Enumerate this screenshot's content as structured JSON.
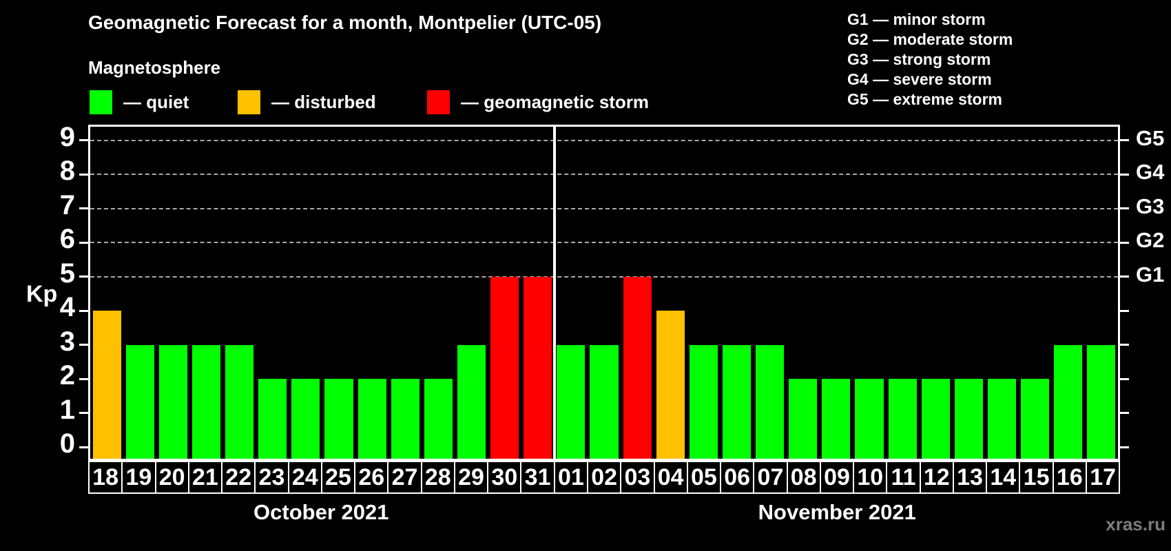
{
  "header": {
    "title": "Geomagnetic Forecast for a month, Montpelier (UTC-05)",
    "subtitle": "Magnetosphere"
  },
  "legend": [
    {
      "label": "— quiet",
      "status": "quiet"
    },
    {
      "label": "— disturbed",
      "status": "disturbed"
    },
    {
      "label": "— geomagnetic storm",
      "status": "storm"
    }
  ],
  "g_legend": [
    "G1 — minor storm",
    "G2 — moderate storm",
    "G3 — strong storm",
    "G4 — severe storm",
    "G5 — extreme storm"
  ],
  "colors": {
    "quiet": "#00ff00",
    "disturbed": "#ffc000",
    "storm": "#ff0000",
    "background": "#000000",
    "text": "#ffffff",
    "gridline": "#aaaaaa",
    "watermark": "#7d7d7d"
  },
  "watermark": "xras.ru",
  "chart_data": {
    "type": "bar",
    "title": "Geomagnetic Forecast for a month, Montpelier (UTC-05)",
    "ylabel": "Kp",
    "ylim": [
      0,
      9
    ],
    "y_ticks": [
      0,
      1,
      2,
      3,
      4,
      5,
      6,
      7,
      8,
      9
    ],
    "gridlines_at": [
      5,
      6,
      7,
      8,
      9
    ],
    "grid": "dashed",
    "right_axis": [
      {
        "value": 5,
        "label": "G1"
      },
      {
        "value": 6,
        "label": "G2"
      },
      {
        "value": 7,
        "label": "G3"
      },
      {
        "value": 8,
        "label": "G4"
      },
      {
        "value": 9,
        "label": "G5"
      }
    ],
    "months": [
      {
        "label": "October 2021",
        "start_index": 0,
        "count": 14
      },
      {
        "label": "November 2021",
        "start_index": 14,
        "count": 17
      }
    ],
    "days": [
      {
        "day": "18",
        "kp": 4,
        "status": "disturbed"
      },
      {
        "day": "19",
        "kp": 3,
        "status": "quiet"
      },
      {
        "day": "20",
        "kp": 3,
        "status": "quiet"
      },
      {
        "day": "21",
        "kp": 3,
        "status": "quiet"
      },
      {
        "day": "22",
        "kp": 3,
        "status": "quiet"
      },
      {
        "day": "23",
        "kp": 2,
        "status": "quiet"
      },
      {
        "day": "24",
        "kp": 2,
        "status": "quiet"
      },
      {
        "day": "25",
        "kp": 2,
        "status": "quiet"
      },
      {
        "day": "26",
        "kp": 2,
        "status": "quiet"
      },
      {
        "day": "27",
        "kp": 2,
        "status": "quiet"
      },
      {
        "day": "28",
        "kp": 2,
        "status": "quiet"
      },
      {
        "day": "29",
        "kp": 3,
        "status": "quiet"
      },
      {
        "day": "30",
        "kp": 5,
        "status": "storm"
      },
      {
        "day": "31",
        "kp": 5,
        "status": "storm"
      },
      {
        "day": "01",
        "kp": 3,
        "status": "quiet"
      },
      {
        "day": "02",
        "kp": 3,
        "status": "quiet"
      },
      {
        "day": "03",
        "kp": 5,
        "status": "storm"
      },
      {
        "day": "04",
        "kp": 4,
        "status": "disturbed"
      },
      {
        "day": "05",
        "kp": 3,
        "status": "quiet"
      },
      {
        "day": "06",
        "kp": 3,
        "status": "quiet"
      },
      {
        "day": "07",
        "kp": 3,
        "status": "quiet"
      },
      {
        "day": "08",
        "kp": 2,
        "status": "quiet"
      },
      {
        "day": "09",
        "kp": 2,
        "status": "quiet"
      },
      {
        "day": "10",
        "kp": 2,
        "status": "quiet"
      },
      {
        "day": "11",
        "kp": 2,
        "status": "quiet"
      },
      {
        "day": "12",
        "kp": 2,
        "status": "quiet"
      },
      {
        "day": "13",
        "kp": 2,
        "status": "quiet"
      },
      {
        "day": "14",
        "kp": 2,
        "status": "quiet"
      },
      {
        "day": "15",
        "kp": 2,
        "status": "quiet"
      },
      {
        "day": "16",
        "kp": 3,
        "status": "quiet"
      },
      {
        "day": "17",
        "kp": 3,
        "status": "quiet"
      }
    ]
  }
}
